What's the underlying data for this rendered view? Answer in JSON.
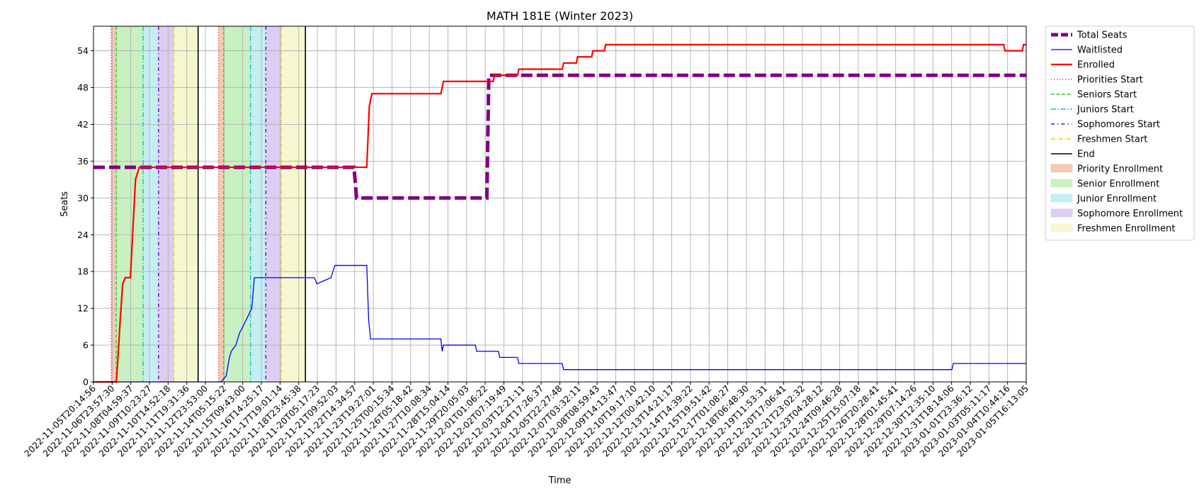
{
  "chart_data": {
    "type": "line",
    "title": "MATH 181E (Winter 2023)",
    "xlabel": "Time",
    "ylabel": "Seats",
    "ylim": [
      0,
      58
    ],
    "yticks": [
      0,
      6,
      12,
      18,
      24,
      30,
      36,
      42,
      48,
      54
    ],
    "grid": true,
    "legend_position": "outside-right",
    "x_tick_labels": [
      "2022-11-05T20:14:56",
      "2022-11-06T23:57:30",
      "2022-11-08T04:59:37",
      "2022-11-09T10:23:27",
      "2022-11-10T14:52:18",
      "2022-11-11T19:31:36",
      "2022-11-12T23:53:00",
      "2022-11-14T05:15:22",
      "2022-11-15T09:43:00",
      "2022-11-16T14:25:17",
      "2022-11-17T19:01:14",
      "2022-11-18T23:45:38",
      "2022-11-20T05:17:23",
      "2022-11-21T09:52:03",
      "2022-11-22T14:34:57",
      "2022-11-23T19:27:01",
      "2022-11-25T00:15:34",
      "2022-11-26T05:18:42",
      "2022-11-27T10:08:34",
      "2022-11-28T15:04:14",
      "2022-11-29T20:05:03",
      "2022-12-01T01:06:22",
      "2022-12-02T07:19:49",
      "2022-12-03T12:21:11",
      "2022-12-04T17:26:37",
      "2022-12-05T22:27:48",
      "2022-12-07T03:32:11",
      "2022-12-08T08:59:43",
      "2022-12-09T14:13:47",
      "2022-12-10T19:17:10",
      "2022-12-12T00:42:10",
      "2022-12-13T14:21:17",
      "2022-12-14T14:39:22",
      "2022-12-15T19:51:42",
      "2022-12-17T01:08:27",
      "2022-12-18T06:48:30",
      "2022-12-19T11:53:31",
      "2022-12-20T17:06:41",
      "2022-12-21T23:02:32",
      "2022-12-23T04:28:12",
      "2022-12-24T09:46:28",
      "2022-12-25T15:07:18",
      "2022-12-26T20:28:41",
      "2022-12-28T01:45:41",
      "2022-12-29T07:14:26",
      "2022-12-30T12:35:10",
      "2022-12-31T18:14:06",
      "2023-01-01T23:36:12",
      "2023-01-03T05:11:17",
      "2023-01-04T10:44:16",
      "2023-01-05T16:13:05"
    ],
    "x_range": [
      "2022-11-05T20:14:56",
      "2023-01-05T16:13:05"
    ],
    "series": [
      {
        "name": "Total Seats",
        "color": "#800080",
        "style": "dashed-thick",
        "points": [
          [
            "2022-11-05T20:14:56",
            35
          ],
          [
            "2022-11-22T20:00:00",
            35
          ],
          [
            "2022-11-23T00:00:00",
            30
          ],
          [
            "2022-12-01T12:00:00",
            30
          ],
          [
            "2022-12-01T15:00:00",
            50
          ],
          [
            "2023-01-05T16:13:05",
            50
          ]
        ]
      },
      {
        "name": "Waitlisted",
        "color": "#0000ff",
        "style": "solid-thin",
        "points": [
          [
            "2022-11-05T20:14:56",
            0
          ],
          [
            "2022-11-14T04:00:00",
            0
          ],
          [
            "2022-11-14T12:00:00",
            1
          ],
          [
            "2022-11-14T17:00:00",
            4
          ],
          [
            "2022-11-14T20:00:00",
            5
          ],
          [
            "2022-11-15T03:00:00",
            6
          ],
          [
            "2022-11-15T06:00:00",
            7
          ],
          [
            "2022-11-15T09:00:00",
            8
          ],
          [
            "2022-11-15T14:00:00",
            9
          ],
          [
            "2022-11-16T04:00:00",
            12
          ],
          [
            "2022-11-16T08:00:00",
            17
          ],
          [
            "2022-11-20T06:00:00",
            17
          ],
          [
            "2022-11-20T10:00:00",
            16
          ],
          [
            "2022-11-21T08:00:00",
            17
          ],
          [
            "2022-11-21T14:00:00",
            19
          ],
          [
            "2022-11-23T16:00:00",
            19
          ],
          [
            "2022-11-23T19:00:00",
            10
          ],
          [
            "2022-11-23T22:00:00",
            7
          ],
          [
            "2022-11-28T12:00:00",
            7
          ],
          [
            "2022-11-28T14:00:00",
            5
          ],
          [
            "2022-11-28T16:00:00",
            6
          ],
          [
            "2022-11-30T18:00:00",
            6
          ],
          [
            "2022-11-30T20:00:00",
            5
          ],
          [
            "2022-12-02T06:00:00",
            5
          ],
          [
            "2022-12-02T08:00:00",
            4
          ],
          [
            "2022-12-03T12:00:00",
            4
          ],
          [
            "2022-12-03T14:00:00",
            3
          ],
          [
            "2022-12-06T10:00:00",
            3
          ],
          [
            "2022-12-06T12:00:00",
            2
          ],
          [
            "2022-12-31T20:00:00",
            2
          ],
          [
            "2022-12-31T22:00:00",
            3
          ],
          [
            "2023-01-05T16:13:05",
            3
          ]
        ]
      },
      {
        "name": "Enrolled",
        "color": "#ff0000",
        "style": "solid-thick",
        "points": [
          [
            "2022-11-05T20:14:56",
            0
          ],
          [
            "2022-11-07T08:00:00",
            0
          ],
          [
            "2022-11-07T10:00:00",
            3
          ],
          [
            "2022-11-07T14:00:00",
            10
          ],
          [
            "2022-11-07T18:00:00",
            16
          ],
          [
            "2022-11-07T22:00:00",
            17
          ],
          [
            "2022-11-08T06:00:00",
            17
          ],
          [
            "2022-11-08T10:00:00",
            25
          ],
          [
            "2022-11-08T14:00:00",
            33
          ],
          [
            "2022-11-08T20:00:00",
            35
          ],
          [
            "2022-11-23T16:00:00",
            35
          ],
          [
            "2022-11-23T20:00:00",
            45
          ],
          [
            "2022-11-24T00:00:00",
            47
          ],
          [
            "2022-11-28T12:00:00",
            47
          ],
          [
            "2022-11-28T16:00:00",
            49
          ],
          [
            "2022-12-01T22:00:00",
            49
          ],
          [
            "2022-12-02T00:00:00",
            50
          ],
          [
            "2022-12-03T12:00:00",
            50
          ],
          [
            "2022-12-03T14:00:00",
            51
          ],
          [
            "2022-12-06T10:00:00",
            51
          ],
          [
            "2022-12-06T12:00:00",
            52
          ],
          [
            "2022-12-07T08:00:00",
            52
          ],
          [
            "2022-12-07T10:00:00",
            53
          ],
          [
            "2022-12-08T08:00:00",
            53
          ],
          [
            "2022-12-08T10:00:00",
            54
          ],
          [
            "2022-12-09T04:00:00",
            54
          ],
          [
            "2022-12-09T06:00:00",
            55
          ],
          [
            "2023-01-04T05:00:00",
            55
          ],
          [
            "2023-01-04T07:00:00",
            54
          ],
          [
            "2023-01-05T10:00:00",
            54
          ],
          [
            "2023-01-05T12:00:00",
            55
          ],
          [
            "2023-01-05T16:13:05",
            55
          ]
        ]
      }
    ],
    "vertical_lines": [
      {
        "name": "Priorities Start",
        "color": "#ff4d4d",
        "style": "dotted",
        "x": [
          "2022-11-07T00:00:00",
          "2022-11-14T00:00:00"
        ]
      },
      {
        "name": "Seniors Start",
        "color": "#33cc33",
        "style": "dashed",
        "x": [
          "2022-11-07T08:00:00",
          "2022-11-14T08:00:00"
        ]
      },
      {
        "name": "Juniors Start",
        "color": "#17becf",
        "style": "dashdot",
        "x": [
          "2022-11-09T02:00:00",
          "2022-11-16T02:00:00"
        ]
      },
      {
        "name": "Sophomores Start",
        "color": "#6600cc",
        "style": "dashdotdot",
        "x": [
          "2022-11-10T02:00:00",
          "2022-11-17T02:00:00"
        ]
      },
      {
        "name": "Freshmen Start",
        "color": "#e6d200",
        "style": "dashdot-thin",
        "x": [
          "2022-11-11T02:00:00",
          "2022-11-18T02:00:00"
        ]
      },
      {
        "name": "End",
        "color": "#000000",
        "style": "solid",
        "x": [
          "2022-11-12T16:00:00",
          "2022-11-19T16:00:00"
        ]
      }
    ],
    "shaded_periods": [
      {
        "name": "Priority Enrollment",
        "color": "#f4c9b4",
        "ranges": [
          [
            "2022-11-07T00:00:00",
            "2022-11-07T08:00:00"
          ],
          [
            "2022-11-14T00:00:00",
            "2022-11-14T08:00:00"
          ]
        ]
      },
      {
        "name": "Senior Enrollment",
        "color": "#c9f0c1",
        "ranges": [
          [
            "2022-11-07T08:00:00",
            "2022-11-09T02:00:00"
          ],
          [
            "2022-11-14T08:00:00",
            "2022-11-16T02:00:00"
          ]
        ]
      },
      {
        "name": "Junior Enrollment",
        "color": "#c4eef1",
        "ranges": [
          [
            "2022-11-09T02:00:00",
            "2022-11-10T02:00:00"
          ],
          [
            "2022-11-16T02:00:00",
            "2022-11-17T02:00:00"
          ]
        ]
      },
      {
        "name": "Sophomore Enrollment",
        "color": "#dccdf2",
        "ranges": [
          [
            "2022-11-10T02:00:00",
            "2022-11-11T02:00:00"
          ],
          [
            "2022-11-17T02:00:00",
            "2022-11-18T02:00:00"
          ]
        ]
      },
      {
        "name": "Freshmen Enrollment",
        "color": "#f7f7cf",
        "ranges": [
          [
            "2022-11-11T02:00:00",
            "2022-11-12T16:00:00"
          ],
          [
            "2022-11-18T02:00:00",
            "2022-11-19T16:00:00"
          ]
        ]
      }
    ]
  }
}
